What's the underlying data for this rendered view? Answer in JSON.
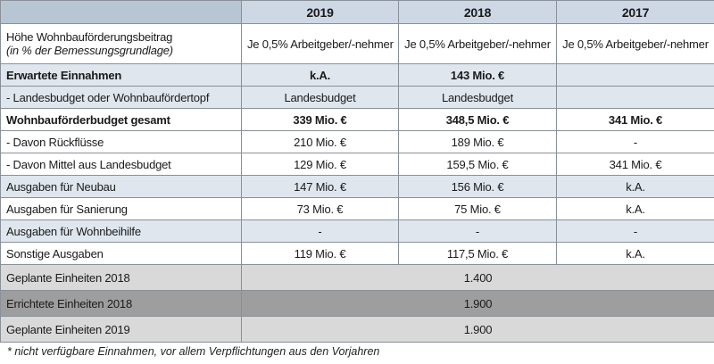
{
  "header": {
    "years": [
      "2019",
      "2018",
      "2017"
    ]
  },
  "rows": {
    "beitrag": {
      "label_line1": "Höhe Wohnbauförderungsbeitrag",
      "label_line2": "(in % der Bemessungsgrundlage)",
      "y2019": "Je 0,5% Arbeitgeber/-nehmer",
      "y2018": "Je 0,5% Arbeitgeber/-nehmer",
      "y2017": "Je 0,5% Arbeitgeber/-nehmer"
    },
    "einnahmen": {
      "label": "Erwartete Einnahmen",
      "y2019": "k.A.",
      "y2018": "143 Mio. €",
      "y2017": ""
    },
    "landesbudget": {
      "label": "- Landesbudget oder Wohnbaufördertopf",
      "y2019": "Landesbudget",
      "y2018": "Landesbudget",
      "y2017": ""
    },
    "gesamt": {
      "label": "Wohnbauförderbudget gesamt",
      "y2019": "339 Mio. €",
      "y2018": "348,5 Mio. €",
      "y2017": "341 Mio. €"
    },
    "rueckfluesse": {
      "label": "- Davon Rückflüsse",
      "y2019": "210 Mio. €",
      "y2018": "189 Mio. €",
      "y2017": "-"
    },
    "mittel": {
      "label": "- Davon Mittel aus Landesbudget",
      "y2019": "129 Mio. €",
      "y2018": "159,5 Mio. €",
      "y2017": "341 Mio. €"
    },
    "neubau": {
      "label": "Ausgaben für Neubau",
      "y2019": "147 Mio. €",
      "y2018": "156 Mio. €",
      "y2017": "k.A."
    },
    "sanierung": {
      "label": "Ausgaben für Sanierung",
      "y2019": "73 Mio. €",
      "y2018": "75 Mio. €",
      "y2017": "k.A."
    },
    "beihilfe": {
      "label": "Ausgaben für Wohnbeihilfe",
      "y2019": "-",
      "y2018": "-",
      "y2017": "-"
    },
    "sonstige": {
      "label": "Sonstige Ausgaben",
      "y2019": "119 Mio. €",
      "y2018": "117,5 Mio. €",
      "y2017": "k.A."
    },
    "geplant2018": {
      "label": "Geplante Einheiten 2018",
      "value": "1.400"
    },
    "errichtet2018": {
      "label": "Errichtete Einheiten 2018",
      "value": "1.900"
    },
    "geplant2019": {
      "label": "Geplante Einheiten 2019",
      "value": "1.900"
    }
  },
  "footnote": "* nicht verfügbare Einnahmen, vor allem Verpflichtungen aus den Vorjahren"
}
